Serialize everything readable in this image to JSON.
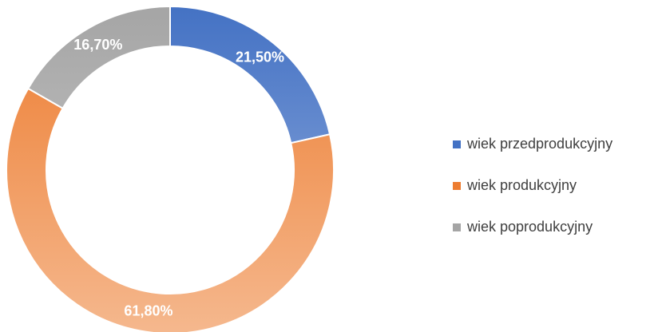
{
  "chart_data": {
    "type": "donut",
    "categories": [
      "wiek przedprodukcyjny",
      "wiek produkcyjny",
      "wiek poprodukcyjny"
    ],
    "values": [
      21.5,
      61.8,
      16.7
    ],
    "value_labels": [
      "21,50%",
      "61,80%",
      "16,70%"
    ],
    "colors": [
      "#4472c4",
      "#ed7d31",
      "#a5a5a5"
    ],
    "legend": "right"
  }
}
